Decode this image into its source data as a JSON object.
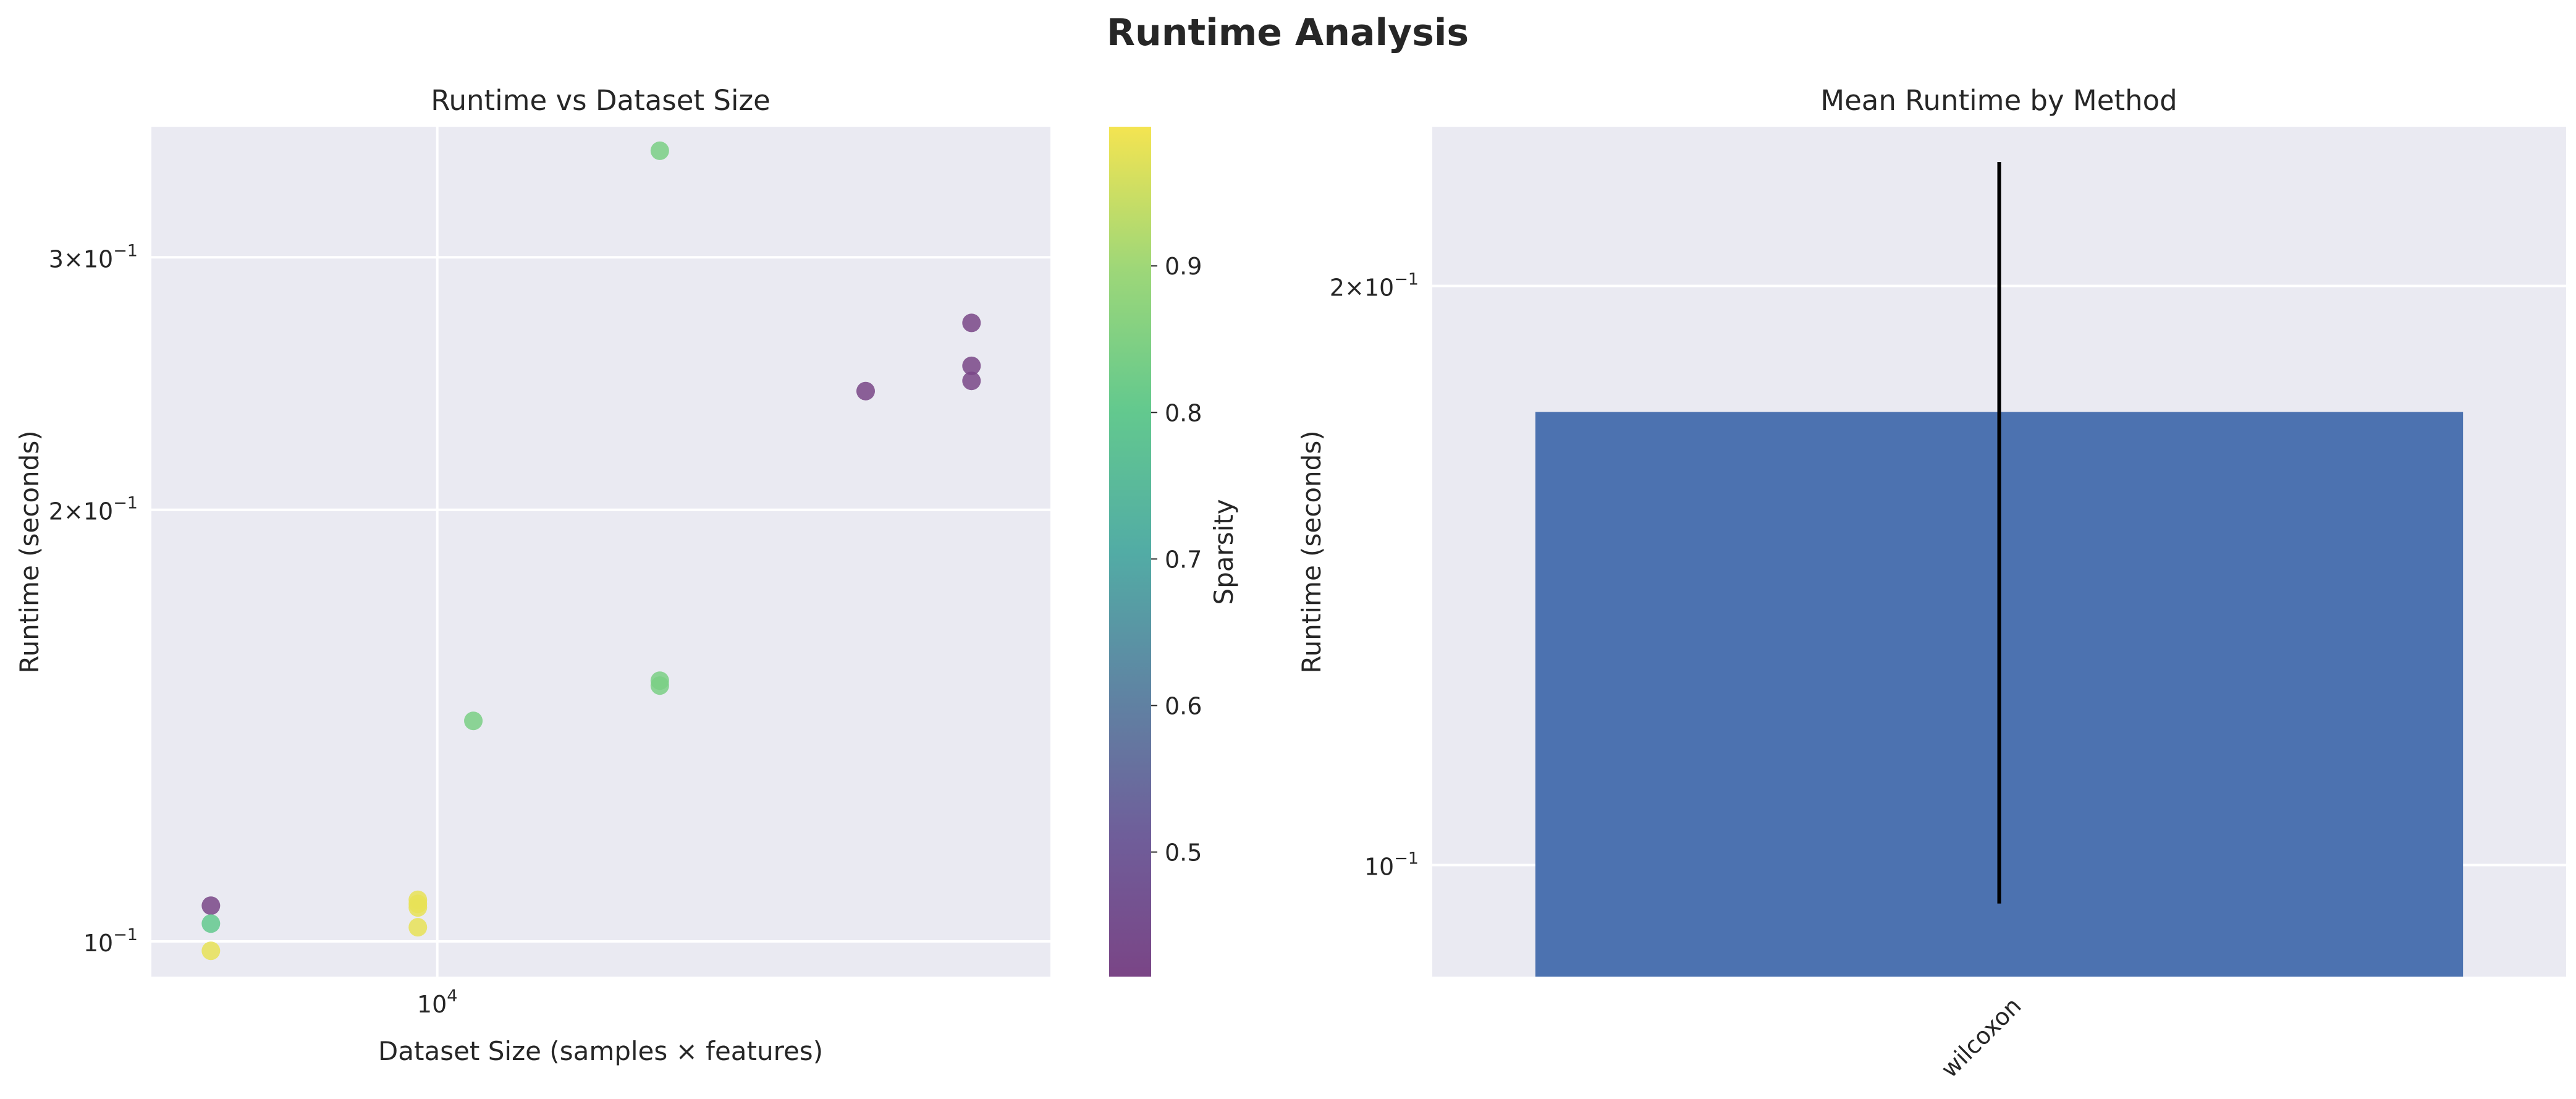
{
  "figure": {
    "title": "Runtime Analysis"
  },
  "chart_data": [
    {
      "type": "scatter",
      "title": "Runtime vs Dataset Size",
      "xlabel": "Dataset Size (samples × features)",
      "ylabel": "Runtime (seconds)",
      "xscale": "log",
      "yscale": "log",
      "xlim": [
        4700,
        50500
      ],
      "ylim": [
        0.0945,
        0.37
      ],
      "grid": true,
      "x_ticks": [
        {
          "value": 10000,
          "base": "10",
          "exp": "4"
        }
      ],
      "y_ticks": [
        {
          "value": 0.1,
          "mant": "",
          "base": "10",
          "exp": "−1"
        },
        {
          "value": 0.2,
          "mant": "2×",
          "base": "10",
          "exp": "−1"
        },
        {
          "value": 0.3,
          "mant": "3×",
          "base": "10",
          "exp": "−1"
        }
      ],
      "colorbar": {
        "label": "Sparsity",
        "range": [
          0.415,
          0.995
        ],
        "ticks": [
          "0.5",
          "0.6",
          "0.7",
          "0.8",
          "0.9"
        ],
        "colors": [
          "#7a4586",
          "#6f5e9a",
          "#5f84a3",
          "#52aca5",
          "#63c98e",
          "#9ed778",
          "#f4e451"
        ]
      },
      "points": [
        {
          "x": 5500,
          "y": 0.1059,
          "sparsity": 0.42
        },
        {
          "x": 5500,
          "y": 0.1029,
          "sparsity": 0.8
        },
        {
          "x": 5500,
          "y": 0.0985,
          "sparsity": 0.98
        },
        {
          "x": 9500,
          "y": 0.1069,
          "sparsity": 0.98
        },
        {
          "x": 9500,
          "y": 0.1062,
          "sparsity": 0.98
        },
        {
          "x": 9500,
          "y": 0.1056,
          "sparsity": 0.98
        },
        {
          "x": 9500,
          "y": 0.1023,
          "sparsity": 0.98
        },
        {
          "x": 11000,
          "y": 0.1425,
          "sparsity": 0.84
        },
        {
          "x": 18000,
          "y": 0.152,
          "sparsity": 0.84
        },
        {
          "x": 18000,
          "y": 0.1508,
          "sparsity": 0.84
        },
        {
          "x": 18000,
          "y": 0.356,
          "sparsity": 0.84
        },
        {
          "x": 31000,
          "y": 0.242,
          "sparsity": 0.42
        },
        {
          "x": 41000,
          "y": 0.27,
          "sparsity": 0.42
        },
        {
          "x": 41000,
          "y": 0.252,
          "sparsity": 0.42
        },
        {
          "x": 41000,
          "y": 0.246,
          "sparsity": 0.42
        }
      ]
    },
    {
      "type": "bar",
      "title": "Mean Runtime by Method",
      "xlabel": "",
      "ylabel": "Runtime (seconds)",
      "yscale": "log",
      "ylim": [
        0.0875,
        0.242
      ],
      "grid": true,
      "categories": [
        "wilcoxon"
      ],
      "values": [
        0.172
      ],
      "error_bars": [
        {
          "low": 0.0955,
          "high": 0.232
        }
      ],
      "bar_color": "#4c72b0",
      "y_ticks": [
        {
          "value": 0.1,
          "mant": "",
          "base": "10",
          "exp": "−1"
        },
        {
          "value": 0.2,
          "mant": "2×",
          "base": "10",
          "exp": "−1"
        }
      ]
    }
  ]
}
